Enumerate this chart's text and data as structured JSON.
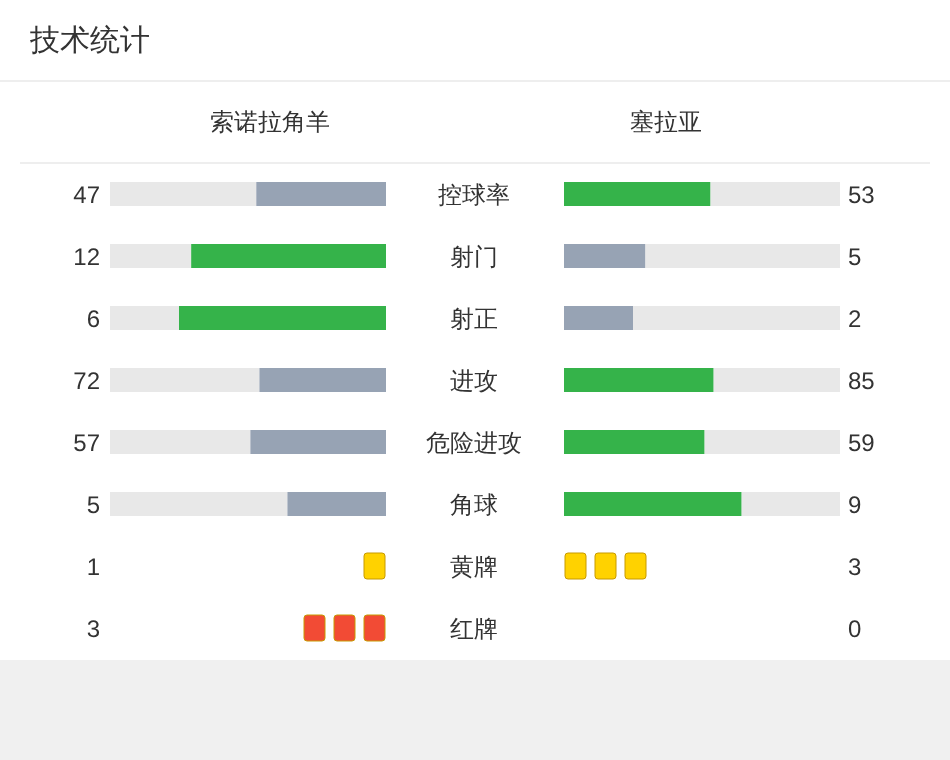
{
  "chart_data": [
    {
      "type": "other",
      "title": "技术统计",
      "data_labels": true,
      "categories": [
        "控球率",
        "射门",
        "射正",
        "进攻",
        "危险进攻",
        "角球"
      ],
      "series": [
        {
          "name": "索诺拉角羊",
          "values": [
            47,
            12,
            6,
            72,
            57,
            5
          ],
          "colors": [
            "#97a3b4",
            "#35b34a",
            "#35b34a",
            "#97a3b4",
            "#97a3b4",
            "#97a3b4"
          ]
        },
        {
          "name": "塞拉亚",
          "values": [
            53,
            5,
            2,
            85,
            59,
            9
          ],
          "colors": [
            "#35b34a",
            "#97a3b4",
            "#97a3b4",
            "#35b34a",
            "#35b34a",
            "#35b34a"
          ]
        }
      ]
    },
    {
      "type": "other",
      "data_labels": true,
      "categories": [
        "黄牌",
        "红牌"
      ],
      "colors": [
        "#ffd200",
        "#f24b35"
      ],
      "series": [
        {
          "values": [
            1,
            3
          ]
        },
        {
          "values": [
            3,
            0
          ]
        }
      ]
    }
  ]
}
